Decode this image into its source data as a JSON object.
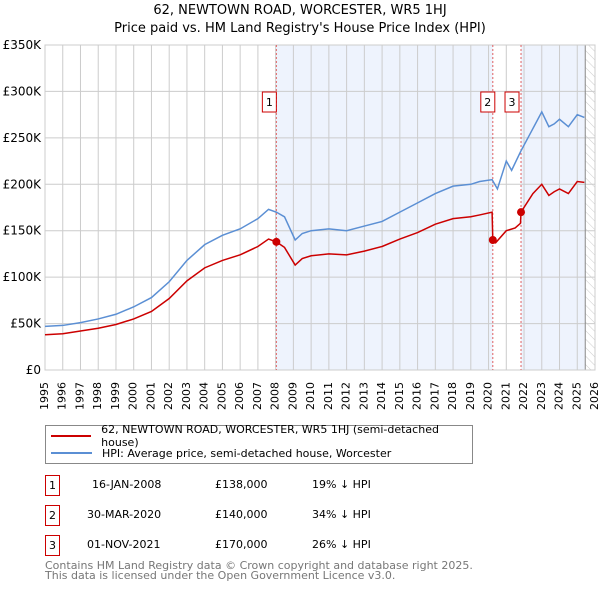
{
  "title": "62, NEWTOWN ROAD, WORCESTER, WR5 1HJ",
  "subtitle": "Price paid vs. HM Land Registry's House Price Index (HPI)",
  "chart_data": {
    "type": "line",
    "xlim": [
      1995,
      2026
    ],
    "ylim": [
      0,
      350000
    ],
    "yticks": [
      0,
      50000,
      100000,
      150000,
      200000,
      250000,
      300000,
      350000
    ],
    "ytick_labels": [
      "£0",
      "£50K",
      "£100K",
      "£150K",
      "£200K",
      "£250K",
      "£300K",
      "£350K"
    ],
    "xticks": [
      1995,
      1996,
      1997,
      1998,
      1999,
      2000,
      2001,
      2002,
      2003,
      2004,
      2005,
      2006,
      2007,
      2008,
      2009,
      2010,
      2011,
      2012,
      2013,
      2014,
      2015,
      2016,
      2017,
      2018,
      2019,
      2020,
      2021,
      2022,
      2023,
      2024,
      2025,
      2026
    ],
    "series": [
      {
        "name": "62, NEWTOWN ROAD, WORCESTER, WR5 1HJ (semi-detached house)",
        "color": "#cc0000",
        "x": [
          1995,
          1996,
          1997,
          1998,
          1999,
          2000,
          2001,
          2002,
          2003,
          2004,
          2005,
          2006,
          2007,
          2007.6,
          2008.04,
          2008.5,
          2009.1,
          2009.5,
          2010,
          2011,
          2012,
          2013,
          2014,
          2015,
          2016,
          2017,
          2018,
          2019,
          2019.5,
          2020.2,
          2020.24,
          2020.4,
          2021,
          2021.5,
          2021.8,
          2021.83,
          2022.5,
          2023,
          2023.4,
          2023.7,
          2024,
          2024.5,
          2025,
          2025.4
        ],
        "y": [
          38000,
          39000,
          42000,
          45000,
          49000,
          55000,
          63000,
          77000,
          96000,
          110000,
          118000,
          124000,
          133000,
          141000,
          138000,
          132000,
          113000,
          120000,
          123000,
          125000,
          124000,
          128000,
          133000,
          141000,
          148000,
          157000,
          163000,
          165000,
          167000,
          170000,
          140000,
          137000,
          150000,
          153000,
          158000,
          170000,
          190000,
          200000,
          188000,
          192000,
          195000,
          190000,
          203000,
          202000
        ]
      },
      {
        "name": "HPI: Average price, semi-detached house, Worcester",
        "color": "#5b8fd4",
        "x": [
          1995,
          1996,
          1997,
          1998,
          1999,
          2000,
          2001,
          2002,
          2003,
          2004,
          2005,
          2006,
          2007,
          2007.6,
          2008.04,
          2008.5,
          2009.1,
          2009.5,
          2010,
          2011,
          2012,
          2013,
          2014,
          2015,
          2016,
          2017,
          2018,
          2019,
          2019.5,
          2020.2,
          2020.5,
          2021,
          2021.3,
          2021.8,
          2022.5,
          2023,
          2023.4,
          2023.7,
          2024,
          2024.5,
          2025,
          2025.4
        ],
        "y": [
          47000,
          48000,
          51000,
          55000,
          60000,
          68000,
          78000,
          95000,
          118000,
          135000,
          145000,
          152000,
          163000,
          173000,
          170000,
          165000,
          140000,
          147000,
          150000,
          152000,
          150000,
          155000,
          160000,
          170000,
          180000,
          190000,
          198000,
          200000,
          203000,
          205000,
          195000,
          225000,
          215000,
          235000,
          260000,
          278000,
          262000,
          265000,
          270000,
          262000,
          275000,
          272000
        ]
      }
    ],
    "sales": [
      {
        "label": "1",
        "x": 2008.04,
        "y": 138000
      },
      {
        "label": "2",
        "x": 2020.24,
        "y": 140000
      },
      {
        "label": "3",
        "x": 2021.83,
        "y": 170000
      }
    ],
    "shaded_ranges": [
      [
        2008.04,
        2020.24
      ],
      [
        2021.83,
        2025.45
      ]
    ],
    "hatched_from": 2025.45
  },
  "transactions": [
    {
      "num": "1",
      "date": "16-JAN-2008",
      "price": "£138,000",
      "hpi": "19% ↓ HPI"
    },
    {
      "num": "2",
      "date": "30-MAR-2020",
      "price": "£140,000",
      "hpi": "34% ↓ HPI"
    },
    {
      "num": "3",
      "date": "01-NOV-2021",
      "price": "£170,000",
      "hpi": "26% ↓ HPI"
    }
  ],
  "footer": [
    "Contains HM Land Registry data © Crown copyright and database right 2025.",
    "This data is licensed under the Open Government Licence v3.0."
  ]
}
